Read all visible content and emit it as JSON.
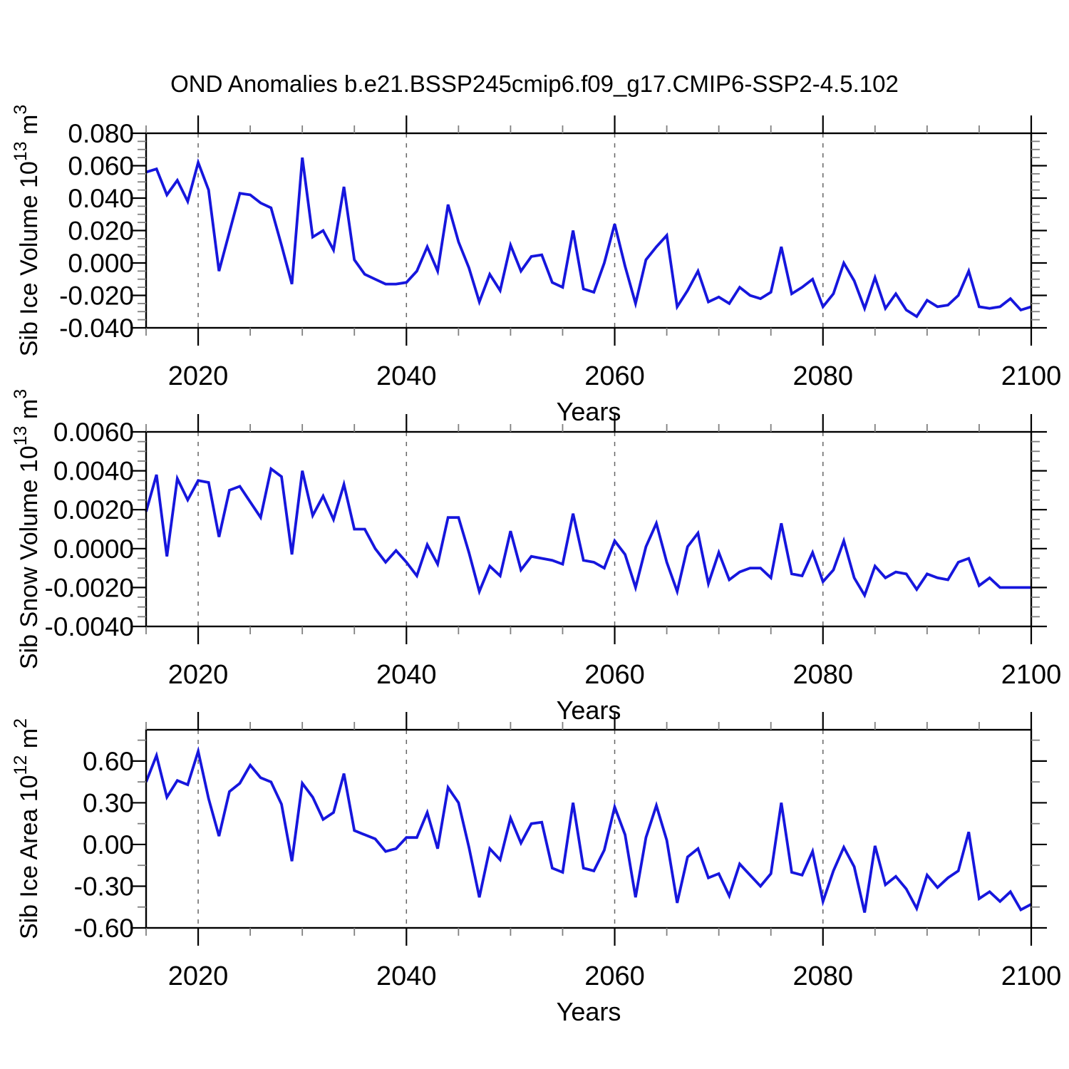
{
  "title": "OND Anomalies b.e21.BSSP245cmip6.f09_g17.CMIP6-SSP2-4.5.102",
  "colors": {
    "line": "#1616dd",
    "axis": "#000000",
    "minor_tick": "#808080",
    "grid": "#666666",
    "background": "#ffffff"
  },
  "x_axis": {
    "label": "Years",
    "range": [
      2015,
      2100
    ],
    "major_ticks": [
      2020,
      2040,
      2060,
      2080,
      2100
    ],
    "tick_labels": [
      "2020",
      "2040",
      "2060",
      "2080",
      "2100"
    ],
    "minor_ticks": [
      2015,
      2025,
      2030,
      2035,
      2045,
      2050,
      2055,
      2065,
      2070,
      2075,
      2085,
      2090,
      2095
    ],
    "gridlines": [
      2020,
      2040,
      2060,
      2080
    ]
  },
  "chart_data": [
    {
      "id": "sib-ice-volume",
      "type": "line",
      "ylabel": "Sib Ice Volume 10^13 m^3",
      "ylabel_segments": [
        {
          "t": "Sib Ice Volume 10"
        },
        {
          "t": "13",
          "sup": true
        },
        {
          "t": " m"
        },
        {
          "t": "3",
          "sup": true
        }
      ],
      "xlabel": "Years",
      "x_start": 2015,
      "x_step": 1,
      "ylim": [
        -0.04,
        0.08
      ],
      "y_major_ticks": [
        0.08,
        0.06,
        0.04,
        0.02,
        0.0,
        -0.02,
        -0.04
      ],
      "y_tick_labels": [
        "0.080",
        "0.060",
        "0.040",
        "0.020",
        "0.000",
        "-0.020",
        "-0.040"
      ],
      "y_minor_ticks": [
        -0.035,
        -0.03,
        -0.025,
        -0.015,
        -0.01,
        -0.005,
        0.005,
        0.01,
        0.015,
        0.025,
        0.03,
        0.035,
        0.045,
        0.05,
        0.055,
        0.065,
        0.07,
        0.075
      ],
      "values": [
        0.056,
        0.058,
        0.042,
        0.051,
        0.038,
        0.062,
        0.045,
        -0.005,
        0.019,
        0.043,
        0.042,
        0.037,
        0.034,
        0.011,
        -0.013,
        0.065,
        0.016,
        0.02,
        0.008,
        0.047,
        0.002,
        -0.007,
        -0.01,
        -0.013,
        -0.013,
        -0.012,
        -0.005,
        0.01,
        -0.005,
        0.036,
        0.013,
        -0.003,
        -0.024,
        -0.007,
        -0.017,
        0.011,
        -0.005,
        0.004,
        0.005,
        -0.012,
        -0.015,
        0.02,
        -0.016,
        -0.018,
        0.0,
        0.024,
        -0.002,
        -0.025,
        0.002,
        0.01,
        0.017,
        -0.027,
        -0.017,
        -0.005,
        -0.024,
        -0.021,
        -0.025,
        -0.015,
        -0.02,
        -0.022,
        -0.018,
        0.01,
        -0.019,
        -0.015,
        -0.01,
        -0.027,
        -0.019,
        0.0,
        -0.011,
        -0.028,
        -0.009,
        -0.028,
        -0.019,
        -0.029,
        -0.033,
        -0.023,
        -0.027,
        -0.026,
        -0.02,
        -0.005,
        -0.027,
        -0.028,
        -0.027,
        -0.022,
        -0.029,
        -0.027
      ]
    },
    {
      "id": "sib-snow-volume",
      "type": "line",
      "ylabel": "Sib Snow Volume 10^13 m^3",
      "ylabel_segments": [
        {
          "t": "Sib Snow Volume 10"
        },
        {
          "t": "13",
          "sup": true
        },
        {
          "t": " m"
        },
        {
          "t": "3",
          "sup": true
        }
      ],
      "xlabel": "Years",
      "x_start": 2015,
      "x_step": 1,
      "ylim": [
        -0.004,
        0.006
      ],
      "y_major_ticks": [
        0.006,
        0.004,
        0.002,
        0.0,
        -0.002,
        -0.004
      ],
      "y_tick_labels": [
        "0.0060",
        "0.0040",
        "0.0020",
        "0.0000",
        "-0.0020",
        "-0.0040"
      ],
      "y_minor_ticks": [
        -0.0035,
        -0.003,
        -0.0025,
        -0.0015,
        -0.001,
        -0.0005,
        0.0005,
        0.001,
        0.0015,
        0.0025,
        0.003,
        0.0035,
        0.0045,
        0.005,
        0.0055
      ],
      "values": [
        0.0019,
        0.0038,
        -0.0004,
        0.0036,
        0.0025,
        0.0035,
        0.0034,
        0.0006,
        0.003,
        0.0032,
        0.0024,
        0.0016,
        0.0041,
        0.0037,
        -0.0003,
        0.004,
        0.0017,
        0.0027,
        0.0015,
        0.0033,
        0.001,
        0.001,
        0.0,
        -0.0007,
        -0.0001,
        -0.0007,
        -0.0014,
        0.0002,
        -0.0008,
        0.0016,
        0.0016,
        -0.0002,
        -0.0022,
        -0.0009,
        -0.0014,
        0.0009,
        -0.0011,
        -0.0004,
        -0.0005,
        -0.0006,
        -0.0008,
        0.0018,
        -0.0006,
        -0.0007,
        -0.001,
        0.0004,
        -0.0003,
        -0.002,
        0.0001,
        0.0013,
        -0.0007,
        -0.0022,
        0.0001,
        0.0008,
        -0.0018,
        -0.0002,
        -0.0016,
        -0.0012,
        -0.001,
        -0.001,
        -0.0015,
        0.0013,
        -0.0013,
        -0.0014,
        -0.0002,
        -0.0017,
        -0.0011,
        0.0004,
        -0.0015,
        -0.0024,
        -0.0009,
        -0.0015,
        -0.0012,
        -0.0013,
        -0.0021,
        -0.0013,
        -0.0015,
        -0.0016,
        -0.0007,
        -0.0005,
        -0.0019,
        -0.0015,
        -0.002,
        -0.002,
        -0.002,
        -0.002
      ]
    },
    {
      "id": "sib-ice-area",
      "type": "line",
      "ylabel": "Sib Ice Area 10^12 m^2",
      "ylabel_segments": [
        {
          "t": "Sib Ice Area 10"
        },
        {
          "t": "12",
          "sup": true
        },
        {
          "t": " m"
        },
        {
          "t": "2",
          "sup": true
        }
      ],
      "xlabel": "Years",
      "x_start": 2015,
      "x_step": 1,
      "ylim": [
        -0.6,
        0.825
      ],
      "y_major_ticks": [
        0.6,
        0.3,
        0.0,
        -0.3,
        -0.6
      ],
      "y_tick_labels": [
        "0.60",
        "0.30",
        "0.00",
        "-0.30",
        "-0.60"
      ],
      "y_minor_ticks": [
        -0.45,
        -0.15,
        0.15,
        0.45,
        0.75
      ],
      "values": [
        0.45,
        0.64,
        0.34,
        0.46,
        0.43,
        0.67,
        0.33,
        0.06,
        0.38,
        0.44,
        0.57,
        0.48,
        0.45,
        0.29,
        -0.12,
        0.44,
        0.34,
        0.18,
        0.23,
        0.51,
        0.1,
        0.07,
        0.04,
        -0.05,
        -0.03,
        0.05,
        0.05,
        0.23,
        -0.03,
        0.41,
        0.3,
        -0.02,
        -0.38,
        -0.03,
        -0.11,
        0.19,
        0.01,
        0.15,
        0.16,
        -0.17,
        -0.2,
        0.3,
        -0.17,
        -0.19,
        -0.04,
        0.27,
        0.07,
        -0.38,
        0.05,
        0.28,
        0.03,
        -0.42,
        -0.09,
        -0.03,
        -0.24,
        -0.21,
        -0.37,
        -0.14,
        -0.22,
        -0.3,
        -0.21,
        0.3,
        -0.2,
        -0.22,
        -0.05,
        -0.41,
        -0.19,
        -0.02,
        -0.16,
        -0.49,
        -0.01,
        -0.29,
        -0.23,
        -0.32,
        -0.46,
        -0.22,
        -0.31,
        -0.24,
        -0.19,
        0.09,
        -0.39,
        -0.34,
        -0.41,
        -0.34,
        -0.47,
        -0.43
      ]
    }
  ]
}
